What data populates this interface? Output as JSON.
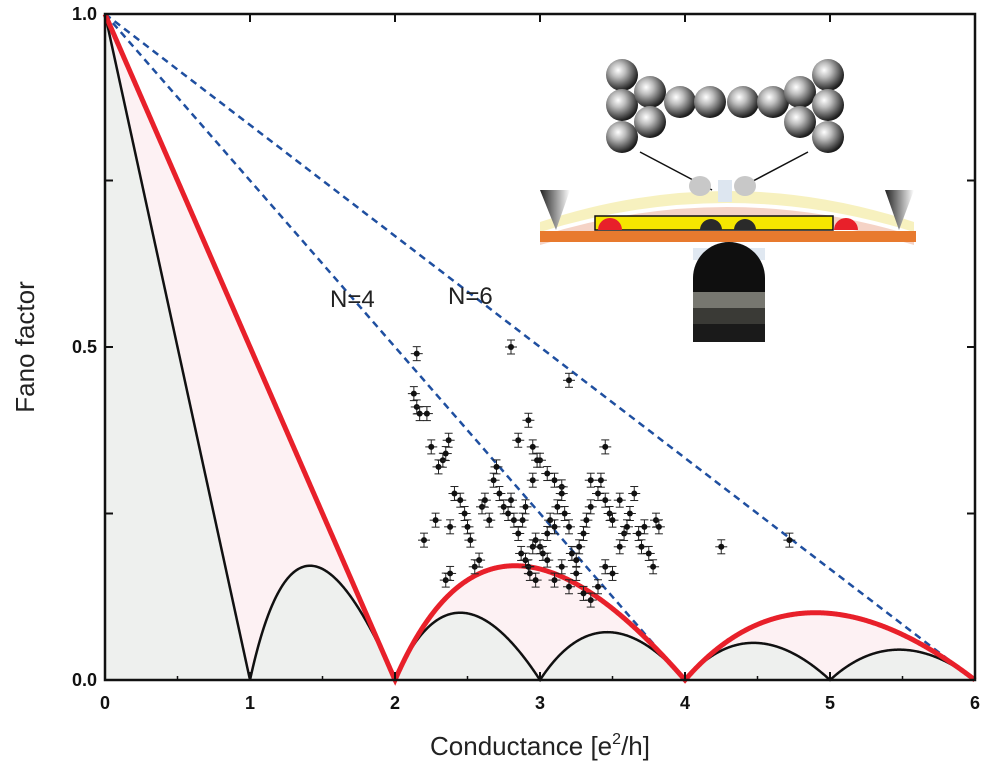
{
  "chart_data": {
    "type": "line",
    "xlabel_main": "Conductance [e",
    "xlabel_sup": "2",
    "xlabel_tail": "/h]",
    "ylabel": "Fano factor",
    "xlim": [
      0,
      6
    ],
    "ylim": [
      0,
      1
    ],
    "x_ticks": [
      0,
      1,
      2,
      3,
      4,
      5,
      6
    ],
    "x_tick_labels": [
      "0",
      "1",
      "2",
      "3",
      "4",
      "5",
      "6"
    ],
    "y_ticks": [
      0,
      0.25,
      0.5,
      0.75,
      1
    ],
    "y_tick_labels": [
      "0.0",
      "",
      "0.5",
      "",
      "1.0"
    ],
    "grid": false,
    "annotations": [
      {
        "text": "N=4",
        "x": 1.55,
        "y": 0.565
      },
      {
        "text": "N=6",
        "x": 2.35,
        "y": 0.575
      }
    ],
    "series": [
      {
        "style": "single-channel bound",
        "color": "#111111",
        "formula": "f(1-f), single open channel (black)"
      },
      {
        "style": "two-channel bound",
        "color": "#e8202a",
        "formula": "two degenerate channels (red)"
      },
      {
        "style": "N=4 linear bound",
        "color": "#1f4fa0",
        "points": [
          [
            0,
            1
          ],
          [
            4,
            0
          ]
        ]
      },
      {
        "style": "N=6 linear bound",
        "color": "#1f4fa0",
        "points": [
          [
            0,
            1
          ],
          [
            6,
            0
          ]
        ]
      }
    ],
    "scatter": [
      [
        2.13,
        0.43
      ],
      [
        2.15,
        0.41
      ],
      [
        2.17,
        0.4
      ],
      [
        2.22,
        0.4
      ],
      [
        2.15,
        0.49
      ],
      [
        2.25,
        0.35
      ],
      [
        2.3,
        0.32
      ],
      [
        2.33,
        0.33
      ],
      [
        2.35,
        0.34
      ],
      [
        2.37,
        0.36
      ],
      [
        2.28,
        0.24
      ],
      [
        2.2,
        0.21
      ],
      [
        2.38,
        0.23
      ],
      [
        2.41,
        0.28
      ],
      [
        2.45,
        0.27
      ],
      [
        2.35,
        0.15
      ],
      [
        2.38,
        0.16
      ],
      [
        2.48,
        0.25
      ],
      [
        2.5,
        0.23
      ],
      [
        2.52,
        0.21
      ],
      [
        2.55,
        0.17
      ],
      [
        2.58,
        0.18
      ],
      [
        2.6,
        0.26
      ],
      [
        2.62,
        0.27
      ],
      [
        2.65,
        0.24
      ],
      [
        2.68,
        0.3
      ],
      [
        2.7,
        0.32
      ],
      [
        2.72,
        0.28
      ],
      [
        2.75,
        0.26
      ],
      [
        2.78,
        0.25
      ],
      [
        2.8,
        0.27
      ],
      [
        2.82,
        0.24
      ],
      [
        2.85,
        0.22
      ],
      [
        2.87,
        0.19
      ],
      [
        2.9,
        0.18
      ],
      [
        2.92,
        0.17
      ],
      [
        2.95,
        0.2
      ],
      [
        2.97,
        0.21
      ],
      [
        3.0,
        0.2
      ],
      [
        3.02,
        0.19
      ],
      [
        3.05,
        0.22
      ],
      [
        3.07,
        0.24
      ],
      [
        3.1,
        0.23
      ],
      [
        3.12,
        0.26
      ],
      [
        3.15,
        0.29
      ],
      [
        3.17,
        0.25
      ],
      [
        3.2,
        0.23
      ],
      [
        3.22,
        0.19
      ],
      [
        3.25,
        0.18
      ],
      [
        3.27,
        0.2
      ],
      [
        3.3,
        0.22
      ],
      [
        3.32,
        0.24
      ],
      [
        3.35,
        0.26
      ],
      [
        3.4,
        0.28
      ],
      [
        3.42,
        0.3
      ],
      [
        3.45,
        0.27
      ],
      [
        3.48,
        0.25
      ],
      [
        3.5,
        0.24
      ],
      [
        3.55,
        0.2
      ],
      [
        3.58,
        0.22
      ],
      [
        3.6,
        0.23
      ],
      [
        3.62,
        0.25
      ],
      [
        3.65,
        0.28
      ],
      [
        3.68,
        0.22
      ],
      [
        3.7,
        0.2
      ],
      [
        3.72,
        0.23
      ],
      [
        3.75,
        0.19
      ],
      [
        3.78,
        0.17
      ],
      [
        3.8,
        0.24
      ],
      [
        3.82,
        0.23
      ],
      [
        2.85,
        0.36
      ],
      [
        2.92,
        0.39
      ],
      [
        2.95,
        0.35
      ],
      [
        3.0,
        0.33
      ],
      [
        3.05,
        0.31
      ],
      [
        2.8,
        0.5
      ],
      [
        3.2,
        0.45
      ],
      [
        2.98,
        0.33
      ],
      [
        3.1,
        0.3
      ],
      [
        3.15,
        0.28
      ],
      [
        2.95,
        0.3
      ],
      [
        2.9,
        0.26
      ],
      [
        2.88,
        0.24
      ],
      [
        2.93,
        0.16
      ],
      [
        2.97,
        0.15
      ],
      [
        3.1,
        0.15
      ],
      [
        3.2,
        0.14
      ],
      [
        3.3,
        0.13
      ],
      [
        3.35,
        0.12
      ],
      [
        3.4,
        0.14
      ],
      [
        3.45,
        0.17
      ],
      [
        3.5,
        0.16
      ],
      [
        3.25,
        0.16
      ],
      [
        3.15,
        0.17
      ],
      [
        3.05,
        0.18
      ],
      [
        4.25,
        0.2
      ],
      [
        4.72,
        0.21
      ],
      [
        3.45,
        0.35
      ],
      [
        3.35,
        0.3
      ],
      [
        3.55,
        0.27
      ]
    ]
  }
}
